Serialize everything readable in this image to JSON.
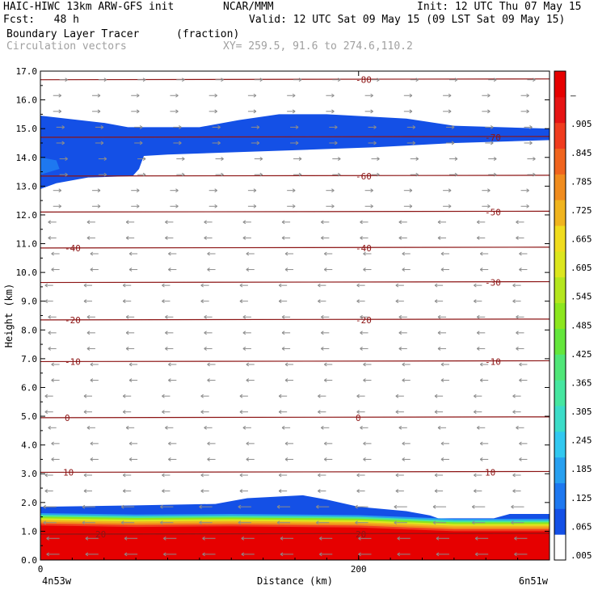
{
  "header": {
    "line1_left": "HAIC-HIWC 13km ARW-GFS init",
    "line1_mid": "NCAR/MMM",
    "line1_right": "Init: 12 UTC Thu 07 May 15",
    "line2_left": "Fcst:   48 h",
    "line2_right": "Valid: 12 UTC Sat 09 May 15 (09 LST Sat 09 May 15)",
    "line3_field": "Boundary Layer Tracer",
    "line3_units": "(fraction)",
    "line4_vectors": "Circulation vectors",
    "line4_xy": "XY= 259.5, 91.6 to 274.6,110.2"
  },
  "chart_data": {
    "type": "heatmap",
    "title": "Boundary Layer Tracer",
    "units": "(fraction)",
    "xlabel": "Distance (km)",
    "ylabel": "Height (km)",
    "xlim": [
      0,
      320
    ],
    "ylim": [
      0,
      17
    ],
    "x_ticks": [
      0,
      200
    ],
    "x_tick_labels": [
      "0",
      "200"
    ],
    "x_end_labels": [
      "4n53w",
      "6n51w"
    ],
    "y_ticks": [
      0,
      1,
      2,
      3,
      4,
      5,
      6,
      7,
      8,
      9,
      10,
      11,
      12,
      13,
      14,
      15,
      16,
      17
    ],
    "y_tick_labels": [
      "0.0",
      "1.0",
      "2.0",
      "3.0",
      "4.0",
      "5.0",
      "6.0",
      "7.0",
      "8.0",
      "9.0",
      "10.0",
      "11.0",
      "12.0",
      "13.0",
      "14.0",
      "15.0",
      "16.0",
      "17.0"
    ],
    "colorbar": {
      "labels": [
        ".005",
        ".065",
        ".125",
        ".185",
        ".245",
        ".305",
        ".365",
        ".425",
        ".485",
        ".545",
        ".605",
        ".665",
        ".725",
        ".785",
        ".845",
        ".905",
        "–"
      ],
      "colors": [
        "#ffffff",
        "#1450e6",
        "#1e78f0",
        "#28a0f0",
        "#32c8f0",
        "#3cdcc8",
        "#46e6a0",
        "#50e678",
        "#64e63c",
        "#8ce61e",
        "#b4e61e",
        "#dce61e",
        "#f0dc1e",
        "#f0b41e",
        "#f08c1e",
        "#f0641e",
        "#f03c1e",
        "#e61414",
        "#e60000"
      ]
    },
    "isotherms": [
      {
        "label": "-80",
        "height": 16.7
      },
      {
        "label": "-70",
        "height": 14.7
      },
      {
        "label": "-60",
        "height": 13.35
      },
      {
        "label": "-50",
        "height": 12.1
      },
      {
        "label": "-40",
        "height": 10.85
      },
      {
        "label": "-30",
        "height": 9.65
      },
      {
        "label": "-20",
        "height": 8.35
      },
      {
        "label": "-10",
        "height": 6.9
      },
      {
        "label": "0",
        "height": 4.95
      },
      {
        "label": "10",
        "height": 3.05
      },
      {
        "label": "20",
        "height": 0.9
      }
    ],
    "tracer_regions": [
      {
        "name": "upper blue layer",
        "value": 0.065,
        "x_range": [
          0,
          320
        ],
        "height_range": [
          13.0,
          15.5
        ]
      },
      {
        "name": "boundary layer blue",
        "value": 0.065,
        "x_range": [
          0,
          320
        ],
        "height_range": [
          1.4,
          2.2
        ]
      },
      {
        "name": "boundary layer red",
        "value": 0.98,
        "x_range": [
          0,
          320
        ],
        "height_range": [
          0.0,
          1.0
        ]
      }
    ]
  }
}
